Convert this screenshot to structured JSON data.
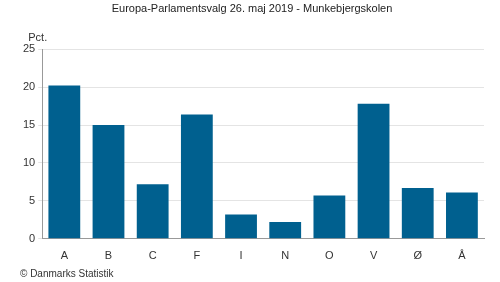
{
  "chart_data": {
    "type": "bar",
    "title": "Europa-Parlamentsvalg 26. maj 2019 - Munkebjergskolen",
    "ylabel": "Pct.",
    "source": "© Danmarks Statistik",
    "categories": [
      "A",
      "B",
      "C",
      "F",
      "I",
      "N",
      "O",
      "V",
      "Ø",
      "Å"
    ],
    "values": [
      20.2,
      15.0,
      7.2,
      16.4,
      3.2,
      2.2,
      5.7,
      17.8,
      6.7,
      6.1
    ],
    "color": "#00608f",
    "ylim": [
      0,
      25
    ],
    "yticks": [
      0,
      5,
      10,
      15,
      20,
      25
    ],
    "grid": true
  }
}
